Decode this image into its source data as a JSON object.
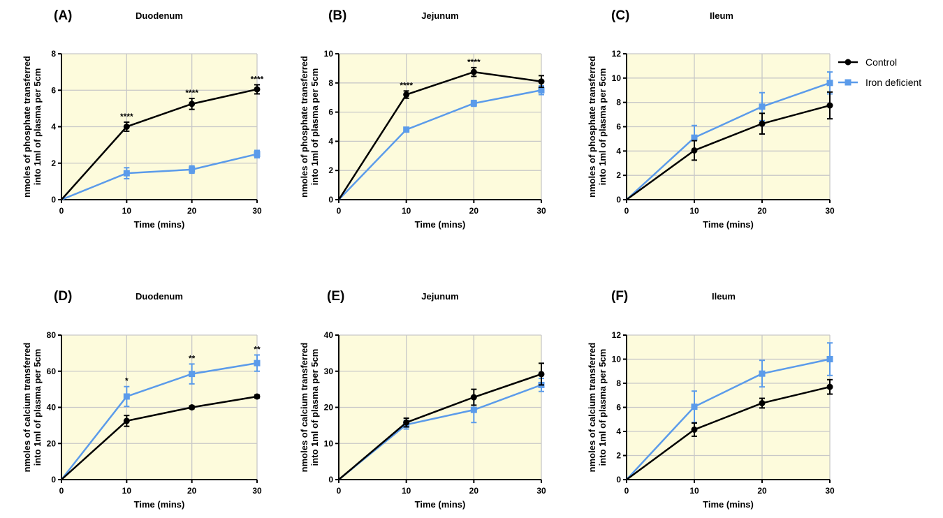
{
  "colors": {
    "control": "#000000",
    "iron_deficient": "#5b9bea",
    "plot_bg": "#fdfbdc",
    "grid": "#c8c8c8"
  },
  "legend": {
    "placement": "right of panel C",
    "entries": [
      "Control",
      "Iron deficient"
    ]
  },
  "chart_data": [
    {
      "panel": "(A)",
      "title": "Duodenum",
      "type": "line",
      "xlabel": "Time (mins)",
      "ylabel": [
        "nmoles of phosphate transferred",
        "into 1ml of plasma per 5cm"
      ],
      "x": [
        0,
        10,
        20,
        30
      ],
      "xlim": [
        0,
        30
      ],
      "xticks": [
        0,
        10,
        20,
        30
      ],
      "ylim": [
        0,
        8
      ],
      "yticks": [
        0,
        2,
        4,
        6,
        8
      ],
      "grid": true,
      "series": [
        {
          "name": "Control",
          "values": [
            0,
            4.0,
            5.25,
            6.05
          ],
          "errors": [
            0,
            0.25,
            0.3,
            0.25
          ]
        },
        {
          "name": "Iron deficient",
          "values": [
            0,
            1.45,
            1.65,
            2.5
          ],
          "errors": [
            0,
            0.3,
            0.2,
            0.2
          ]
        }
      ],
      "annotations": [
        {
          "x": 10,
          "text": "****"
        },
        {
          "x": 20,
          "text": "****"
        },
        {
          "x": 30,
          "text": "****"
        }
      ]
    },
    {
      "panel": "(B)",
      "title": "Jejunum",
      "type": "line",
      "xlabel": "Time (mins)",
      "ylabel": [
        "nmoles of phosphate transferred",
        "into 1ml of plasma per 5cm"
      ],
      "x": [
        0,
        10,
        20,
        30
      ],
      "xlim": [
        0,
        30
      ],
      "xticks": [
        0,
        10,
        20,
        30
      ],
      "ylim": [
        0,
        10
      ],
      "yticks": [
        0,
        2,
        4,
        6,
        8,
        10
      ],
      "grid": true,
      "series": [
        {
          "name": "Control",
          "values": [
            0,
            7.2,
            8.75,
            8.1
          ],
          "errors": [
            0,
            0.25,
            0.3,
            0.4
          ]
        },
        {
          "name": "Iron deficient",
          "values": [
            0,
            4.8,
            6.6,
            7.5
          ],
          "errors": [
            0,
            0.1,
            0.2,
            0.3
          ]
        }
      ],
      "annotations": [
        {
          "x": 10,
          "text": "****"
        },
        {
          "x": 20,
          "text": "****"
        }
      ]
    },
    {
      "panel": "(C)",
      "title": "Ileum",
      "type": "line",
      "xlabel": "Time (mins)",
      "ylabel": [
        "nmoles of phosphate transferred",
        "into 1ml of plasma per 5cm"
      ],
      "x": [
        0,
        10,
        20,
        30
      ],
      "xlim": [
        0,
        30
      ],
      "xticks": [
        0,
        10,
        20,
        30
      ],
      "ylim": [
        0,
        12
      ],
      "yticks": [
        0,
        2,
        4,
        6,
        8,
        10,
        12
      ],
      "grid": true,
      "series": [
        {
          "name": "Control",
          "values": [
            0,
            4.05,
            6.25,
            7.75
          ],
          "errors": [
            0,
            0.8,
            0.85,
            1.1
          ]
        },
        {
          "name": "Iron deficient",
          "values": [
            0,
            5.1,
            7.65,
            9.6
          ],
          "errors": [
            0,
            1.0,
            1.15,
            0.9
          ]
        }
      ],
      "annotations": []
    },
    {
      "panel": "(D)",
      "title": "Duodenum",
      "type": "line",
      "xlabel": "Time (mins)",
      "ylabel": [
        "nmoles of calcium transferred",
        "into 1ml of plasma per 5cm"
      ],
      "x": [
        0,
        10,
        20,
        30
      ],
      "xlim": [
        0,
        30
      ],
      "xticks": [
        0,
        10,
        20,
        30
      ],
      "ylim": [
        0,
        80
      ],
      "yticks": [
        0,
        20,
        40,
        60,
        80
      ],
      "grid": true,
      "series": [
        {
          "name": "Control",
          "values": [
            0,
            32.5,
            40,
            46
          ],
          "errors": [
            0,
            3,
            0.8,
            0.8
          ]
        },
        {
          "name": "Iron deficient",
          "values": [
            0,
            46,
            58.5,
            64.5
          ],
          "errors": [
            0,
            5.5,
            5.5,
            4.5
          ]
        }
      ],
      "annotations": [
        {
          "x": 10,
          "text": "*"
        },
        {
          "x": 20,
          "text": "**"
        },
        {
          "x": 30,
          "text": "**"
        }
      ]
    },
    {
      "panel": "(E)",
      "title": "Jejunum",
      "type": "line",
      "xlabel": "Time (mins)",
      "ylabel": [
        "nmoles of calcium transferred",
        "into 1ml of plasma per 5cm"
      ],
      "x": [
        0,
        10,
        20,
        30
      ],
      "xlim": [
        0,
        30
      ],
      "xticks": [
        0,
        10,
        20,
        30
      ],
      "ylim": [
        0,
        40
      ],
      "yticks": [
        0,
        10,
        20,
        30,
        40
      ],
      "grid": true,
      "series": [
        {
          "name": "Control",
          "values": [
            0,
            15.8,
            22.8,
            29.2
          ],
          "errors": [
            0,
            1.2,
            2.2,
            3
          ]
        },
        {
          "name": "Iron deficient",
          "values": [
            0,
            15.2,
            19.3,
            26.2
          ],
          "errors": [
            0,
            1.2,
            3.5,
            1.8
          ]
        }
      ],
      "annotations": []
    },
    {
      "panel": "(F)",
      "title": "Ileum",
      "type": "line",
      "xlabel": "Time (mins)",
      "ylabel": [
        "nmoles of calcium  transferred",
        "into 1ml of plasma per 5cm"
      ],
      "x": [
        0,
        10,
        20,
        30
      ],
      "xlim": [
        0,
        30
      ],
      "xticks": [
        0,
        10,
        20,
        30
      ],
      "ylim": [
        0,
        12
      ],
      "yticks": [
        0,
        2,
        4,
        6,
        8,
        10,
        12
      ],
      "grid": true,
      "series": [
        {
          "name": "Control",
          "values": [
            0,
            4.15,
            6.35,
            7.7
          ],
          "errors": [
            0,
            0.55,
            0.4,
            0.6
          ]
        },
        {
          "name": "Iron deficient",
          "values": [
            0,
            6.05,
            8.8,
            10.0
          ],
          "errors": [
            0,
            1.3,
            1.1,
            1.35
          ]
        }
      ],
      "annotations": []
    }
  ]
}
